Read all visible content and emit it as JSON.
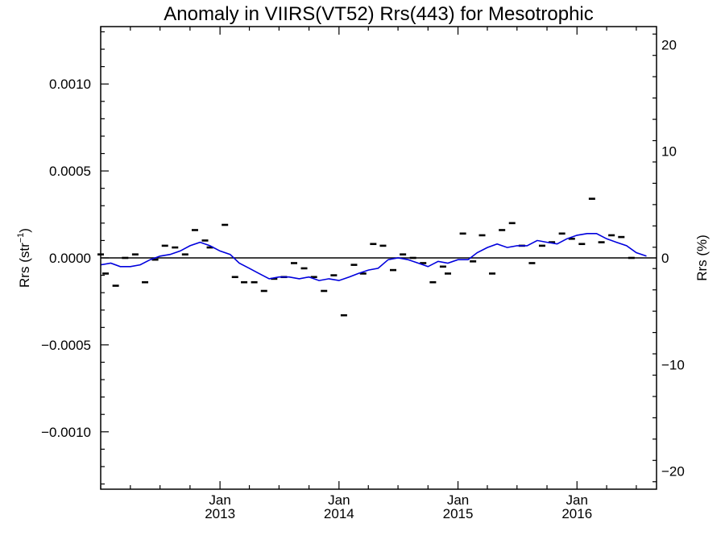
{
  "chart_data": {
    "type": "line",
    "title": "Anomaly in VIIRS(VT52) Rrs(443) for Mesotrophic",
    "ylabel": "Rrs (str⁻¹)",
    "ylabel_main": "Rrs (str",
    "ylabel_sup": "−1",
    "ylabel_close": ")",
    "y2label": "Rrs (%)",
    "ylim": [
      -0.00133,
      0.00133
    ],
    "y2lim": [
      -21.7,
      21.7
    ],
    "xlim": [
      "2012-01-01",
      "2016-09-01"
    ],
    "yticks": [
      {
        "value": 0.001,
        "label": "0.0010"
      },
      {
        "value": 0.0005,
        "label": "0.0005"
      },
      {
        "value": 0.0,
        "label": "0.0000"
      },
      {
        "value": -0.0005,
        "label": "−0.0005"
      },
      {
        "value": -0.001,
        "label": "−0.0010"
      }
    ],
    "y2ticks": [
      {
        "value": 20,
        "label": "20"
      },
      {
        "value": 10,
        "label": "10"
      },
      {
        "value": 0,
        "label": "0"
      },
      {
        "value": -10,
        "label": "−10"
      },
      {
        "value": -20,
        "label": "−20"
      }
    ],
    "xticks": [
      {
        "date": "2013-01-01",
        "month": "Jan",
        "year": "2013"
      },
      {
        "date": "2014-01-01",
        "month": "Jan",
        "year": "2014"
      },
      {
        "date": "2015-01-01",
        "month": "Jan",
        "year": "2015"
      },
      {
        "date": "2016-01-01",
        "month": "Jan",
        "year": "2016"
      }
    ],
    "zero_line": 0,
    "series": [
      {
        "kind": "markers",
        "color": "#000000",
        "points": [
          {
            "x": "2012-01-01",
            "y": 2e-05
          },
          {
            "x": "2012-01-16",
            "y": -9e-05
          },
          {
            "x": "2012-02-16",
            "y": -0.00016
          },
          {
            "x": "2012-03-16",
            "y": 0.0
          },
          {
            "x": "2012-04-16",
            "y": 2e-05
          },
          {
            "x": "2012-05-16",
            "y": -0.00014
          },
          {
            "x": "2012-06-16",
            "y": -1e-05
          },
          {
            "x": "2012-07-16",
            "y": 7e-05
          },
          {
            "x": "2012-08-16",
            "y": 6e-05
          },
          {
            "x": "2012-09-16",
            "y": 2e-05
          },
          {
            "x": "2012-10-16",
            "y": 0.00016
          },
          {
            "x": "2012-11-16",
            "y": 0.0001
          },
          {
            "x": "2012-12-01",
            "y": 6e-05
          },
          {
            "x": "2013-01-16",
            "y": 0.00019
          },
          {
            "x": "2013-02-16",
            "y": -0.00011
          },
          {
            "x": "2013-03-16",
            "y": -0.00014
          },
          {
            "x": "2013-04-16",
            "y": -0.00014
          },
          {
            "x": "2013-05-16",
            "y": -0.00019
          },
          {
            "x": "2013-06-16",
            "y": -0.00012
          },
          {
            "x": "2013-07-16",
            "y": -0.00011
          },
          {
            "x": "2013-08-16",
            "y": -3e-05
          },
          {
            "x": "2013-09-16",
            "y": -6e-05
          },
          {
            "x": "2013-10-16",
            "y": -0.00011
          },
          {
            "x": "2013-11-16",
            "y": -0.00019
          },
          {
            "x": "2013-12-16",
            "y": -0.0001
          },
          {
            "x": "2014-01-16",
            "y": -0.00033
          },
          {
            "x": "2014-02-16",
            "y": -4e-05
          },
          {
            "x": "2014-03-16",
            "y": -9e-05
          },
          {
            "x": "2014-04-16",
            "y": 8e-05
          },
          {
            "x": "2014-05-16",
            "y": 7e-05
          },
          {
            "x": "2014-06-16",
            "y": -7e-05
          },
          {
            "x": "2014-07-16",
            "y": 2e-05
          },
          {
            "x": "2014-08-16",
            "y": 0.0
          },
          {
            "x": "2014-09-16",
            "y": -3e-05
          },
          {
            "x": "2014-10-16",
            "y": -0.00014
          },
          {
            "x": "2014-11-16",
            "y": -5e-05
          },
          {
            "x": "2014-12-01",
            "y": -9e-05
          },
          {
            "x": "2015-01-16",
            "y": 0.00014
          },
          {
            "x": "2015-02-16",
            "y": -2e-05
          },
          {
            "x": "2015-03-16",
            "y": 0.00013
          },
          {
            "x": "2015-04-16",
            "y": -9e-05
          },
          {
            "x": "2015-05-16",
            "y": 0.00016
          },
          {
            "x": "2015-06-16",
            "y": 0.0002
          },
          {
            "x": "2015-07-16",
            "y": 7e-05
          },
          {
            "x": "2015-08-16",
            "y": -3e-05
          },
          {
            "x": "2015-09-16",
            "y": 7e-05
          },
          {
            "x": "2015-10-16",
            "y": 9e-05
          },
          {
            "x": "2015-11-16",
            "y": 0.00014
          },
          {
            "x": "2015-12-16",
            "y": 0.00011
          },
          {
            "x": "2016-01-16",
            "y": 8e-05
          },
          {
            "x": "2016-02-16",
            "y": 0.00034
          },
          {
            "x": "2016-03-16",
            "y": 9e-05
          },
          {
            "x": "2016-04-16",
            "y": 0.00013
          },
          {
            "x": "2016-05-16",
            "y": 0.00012
          },
          {
            "x": "2016-06-16",
            "y": 0.0
          }
        ]
      },
      {
        "kind": "line",
        "color": "#0000dd",
        "points": [
          {
            "x": "2012-01-01",
            "y": -4e-05
          },
          {
            "x": "2012-02-01",
            "y": -3e-05
          },
          {
            "x": "2012-03-01",
            "y": -5e-05
          },
          {
            "x": "2012-04-01",
            "y": -5e-05
          },
          {
            "x": "2012-05-01",
            "y": -4e-05
          },
          {
            "x": "2012-06-01",
            "y": -1e-05
          },
          {
            "x": "2012-07-01",
            "y": 1e-05
          },
          {
            "x": "2012-08-01",
            "y": 2e-05
          },
          {
            "x": "2012-09-01",
            "y": 4e-05
          },
          {
            "x": "2012-10-01",
            "y": 7e-05
          },
          {
            "x": "2012-11-01",
            "y": 9e-05
          },
          {
            "x": "2012-12-01",
            "y": 7e-05
          },
          {
            "x": "2013-01-01",
            "y": 4e-05
          },
          {
            "x": "2013-02-01",
            "y": 2e-05
          },
          {
            "x": "2013-03-01",
            "y": -3e-05
          },
          {
            "x": "2013-04-01",
            "y": -6e-05
          },
          {
            "x": "2013-05-01",
            "y": -9e-05
          },
          {
            "x": "2013-06-01",
            "y": -0.00012
          },
          {
            "x": "2013-07-01",
            "y": -0.00011
          },
          {
            "x": "2013-08-01",
            "y": -0.00011
          },
          {
            "x": "2013-09-01",
            "y": -0.00012
          },
          {
            "x": "2013-10-01",
            "y": -0.00011
          },
          {
            "x": "2013-11-01",
            "y": -0.00013
          },
          {
            "x": "2013-12-01",
            "y": -0.00012
          },
          {
            "x": "2014-01-01",
            "y": -0.00013
          },
          {
            "x": "2014-02-01",
            "y": -0.00011
          },
          {
            "x": "2014-03-01",
            "y": -9e-05
          },
          {
            "x": "2014-04-01",
            "y": -7e-05
          },
          {
            "x": "2014-05-01",
            "y": -6e-05
          },
          {
            "x": "2014-06-01",
            "y": -1e-05
          },
          {
            "x": "2014-07-01",
            "y": 0.0
          },
          {
            "x": "2014-08-01",
            "y": -1e-05
          },
          {
            "x": "2014-09-01",
            "y": -3e-05
          },
          {
            "x": "2014-10-01",
            "y": -5e-05
          },
          {
            "x": "2014-11-01",
            "y": -2e-05
          },
          {
            "x": "2014-12-01",
            "y": -3e-05
          },
          {
            "x": "2015-01-01",
            "y": -1e-05
          },
          {
            "x": "2015-02-01",
            "y": -1e-05
          },
          {
            "x": "2015-03-01",
            "y": 3e-05
          },
          {
            "x": "2015-04-01",
            "y": 6e-05
          },
          {
            "x": "2015-05-01",
            "y": 8e-05
          },
          {
            "x": "2015-06-01",
            "y": 6e-05
          },
          {
            "x": "2015-07-01",
            "y": 7e-05
          },
          {
            "x": "2015-08-01",
            "y": 7e-05
          },
          {
            "x": "2015-09-01",
            "y": 0.0001
          },
          {
            "x": "2015-10-01",
            "y": 9e-05
          },
          {
            "x": "2015-11-01",
            "y": 8e-05
          },
          {
            "x": "2015-12-01",
            "y": 0.00011
          },
          {
            "x": "2016-01-01",
            "y": 0.00013
          },
          {
            "x": "2016-02-01",
            "y": 0.00014
          },
          {
            "x": "2016-03-01",
            "y": 0.00014
          },
          {
            "x": "2016-04-01",
            "y": 0.00011
          },
          {
            "x": "2016-05-01",
            "y": 9e-05
          },
          {
            "x": "2016-06-01",
            "y": 7e-05
          },
          {
            "x": "2016-07-01",
            "y": 3e-05
          },
          {
            "x": "2016-08-01",
            "y": 1e-05
          }
        ]
      }
    ]
  }
}
